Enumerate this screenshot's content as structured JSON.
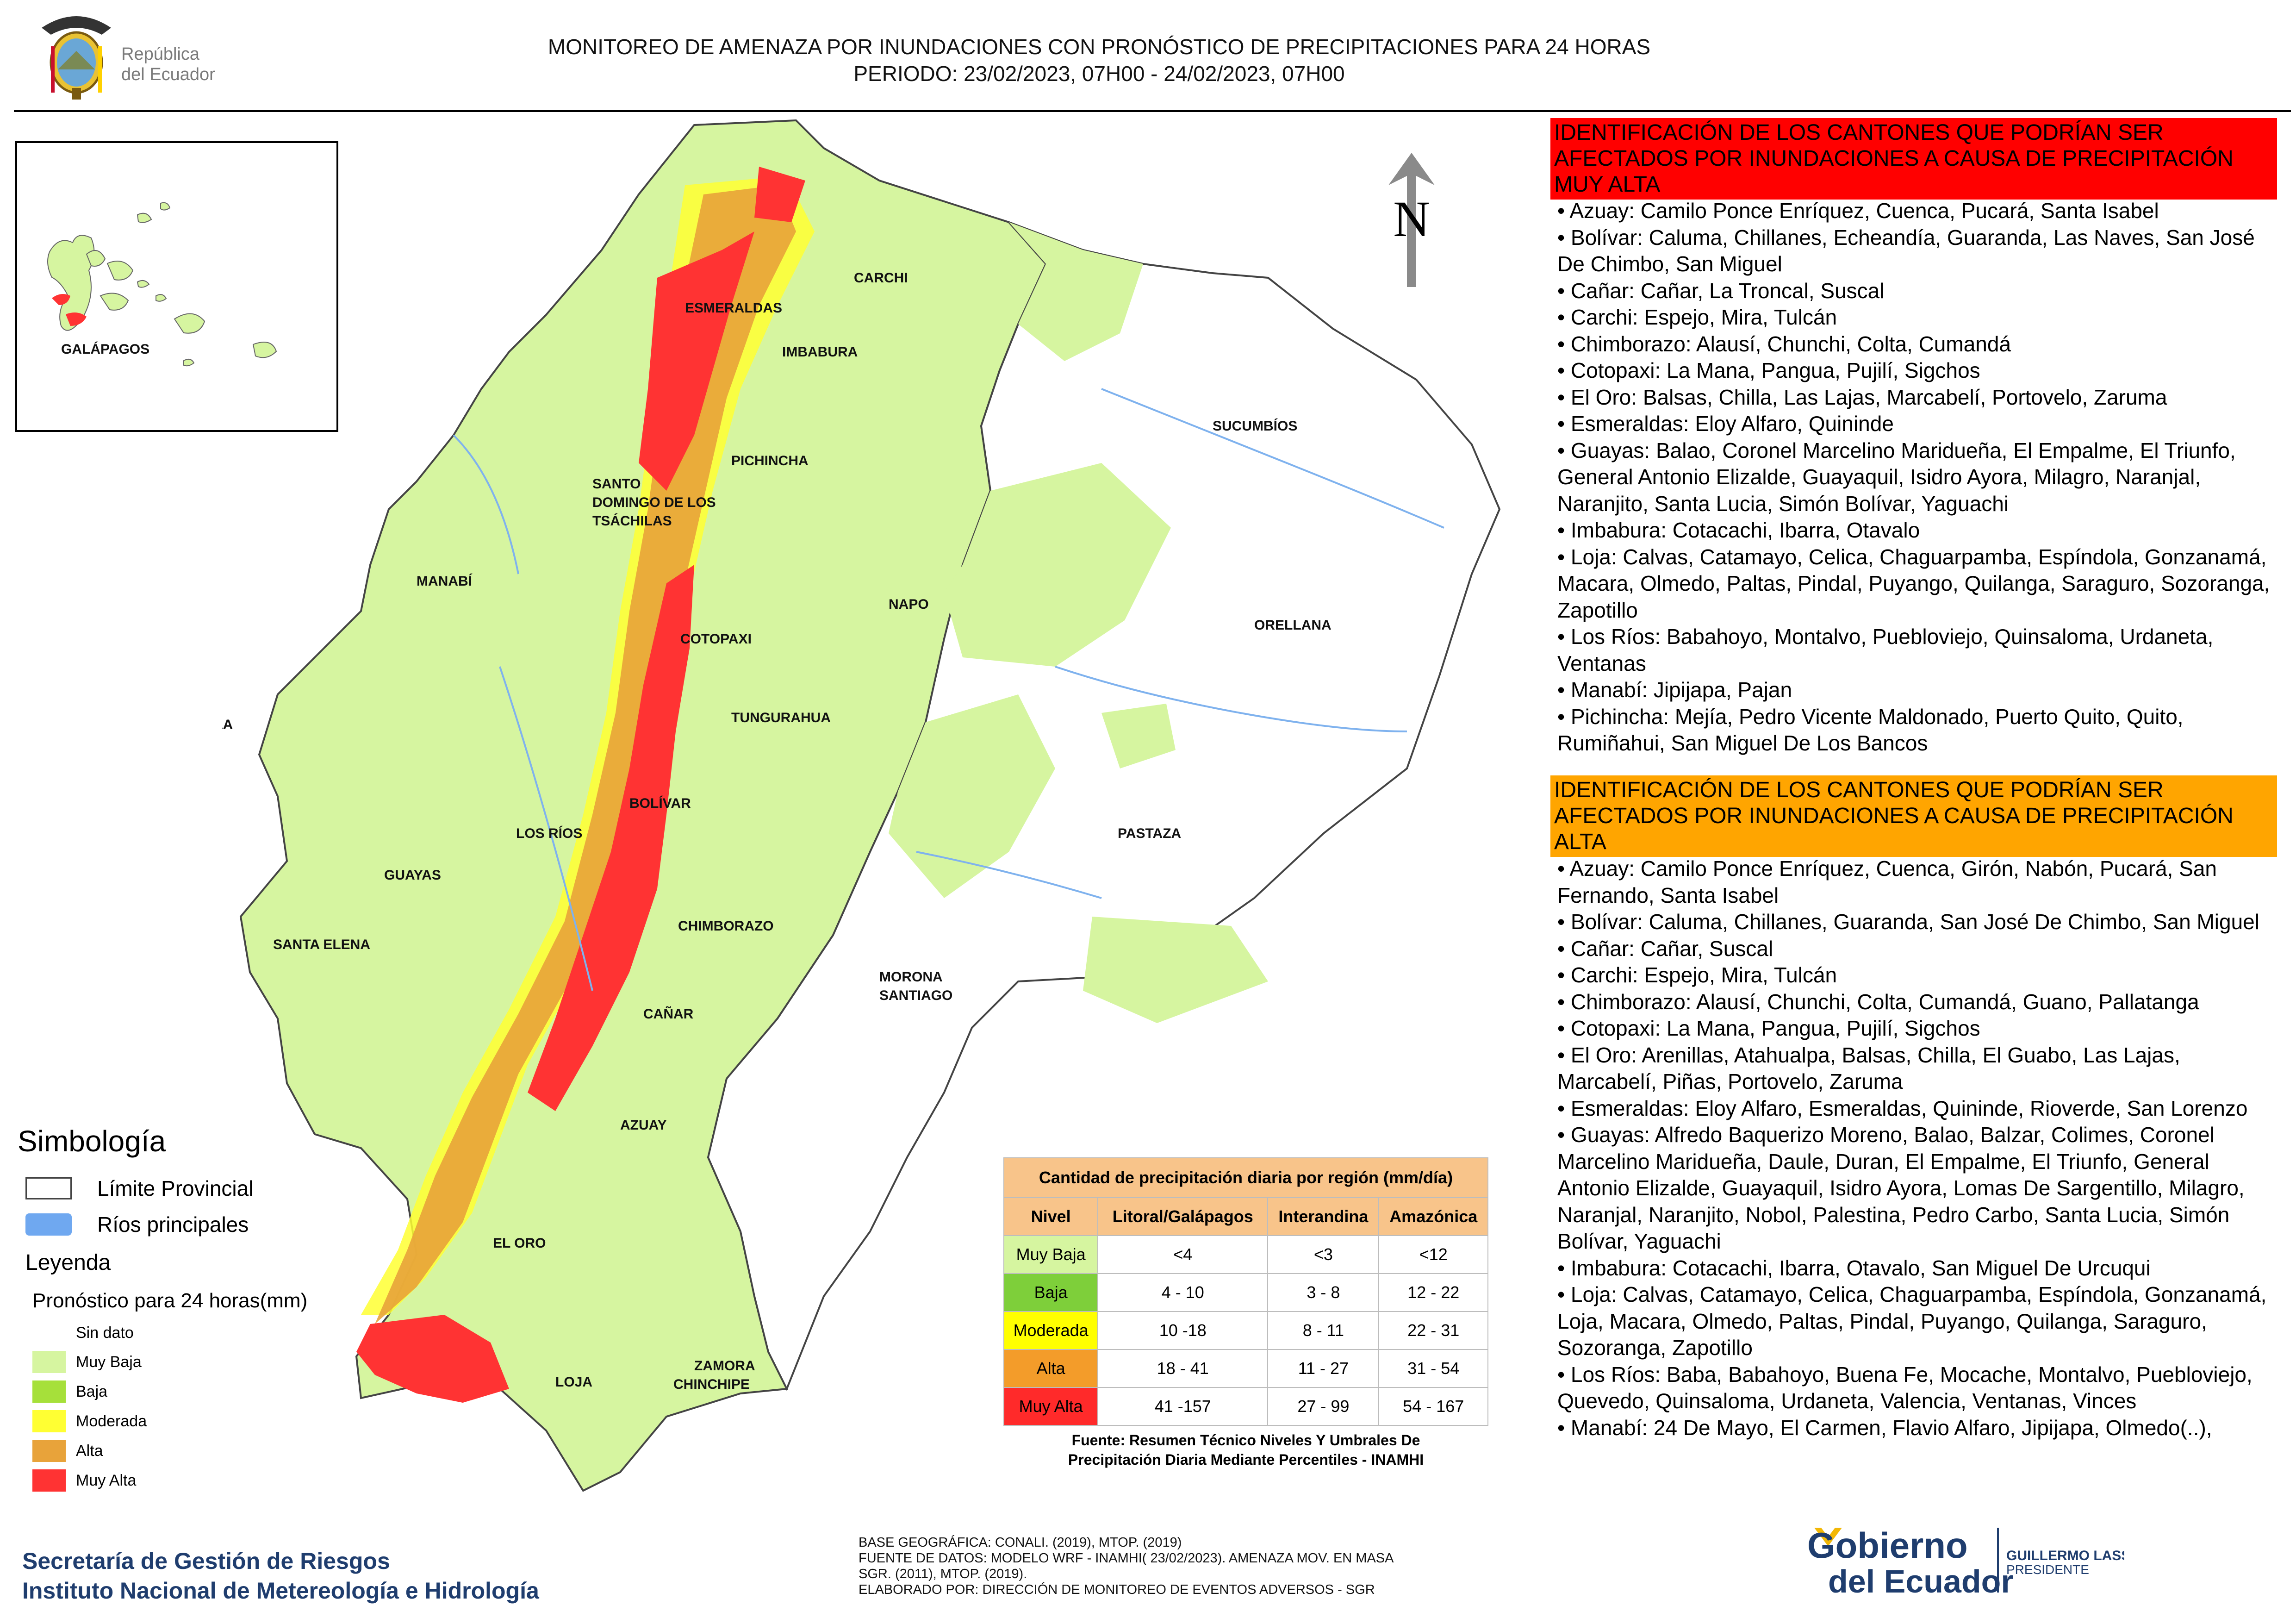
{
  "header": {
    "logo_text_line1": "República",
    "logo_text_line2": "del Ecuador",
    "title_line1": "MONITOREO DE AMENAZA POR INUNDACIONES  CON PRONÓSTICO DE  PRECIPITACIONES PARA 24 HORAS",
    "title_line2": "PERIODO: 23/02/2023, 07H00 - 24/02/2023, 07H00"
  },
  "map": {
    "north_label": "N",
    "provinces": {
      "galapagos": "GALÁPAGOS",
      "esmeraldas": "ESMERALDAS",
      "carchi": "CARCHI",
      "imbabura": "IMBABURA",
      "sucumbios": "SUCUMBÍOS",
      "pichincha": "PICHINCHA",
      "santo_domingo_1": "SANTO",
      "santo_domingo_2": "DOMINGO DE LOS",
      "santo_domingo_3": "TSÁCHILAS",
      "manabi": "MANABÍ",
      "napo": "NAPO",
      "orellana": "ORELLANA",
      "cotopaxi": "COTOPAXI",
      "isla": "ISLA",
      "tungurahua": "TUNGURAHUA",
      "bolivar": "BOLÍVAR",
      "los_rios": "LOS RÍOS",
      "pastaza": "PASTAZA",
      "guayas": "GUAYAS",
      "chimborazo": "CHIMBORAZO",
      "santa_elena": "SANTA ELENA",
      "morona_1": "MORONA",
      "morona_2": "SANTIAGO",
      "canar": "CAÑAR",
      "azuay": "AZUAY",
      "el_oro": "EL ORO",
      "zamora_1": "ZAMORA",
      "zamora_2": "CHINCHIPE",
      "loja": "LOJA"
    }
  },
  "symbology": {
    "title": "Simbología",
    "limite": "Límite Provincial",
    "rios": "Ríos principales",
    "leyenda_title": "Leyenda",
    "leyenda_sub": "Pronóstico para 24 horas(mm)",
    "items": [
      {
        "label": "Sin dato",
        "color": "#ffffff"
      },
      {
        "label": "Muy Baja",
        "color": "#d6f5a0"
      },
      {
        "label": "Baja",
        "color": "#a6e03a"
      },
      {
        "label": "Moderada",
        "color": "#ffff33"
      },
      {
        "label": "Alta",
        "color": "#e8a33a"
      },
      {
        "label": "Muy Alta",
        "color": "#ff3333"
      }
    ],
    "limite_color": "#ffffff",
    "rios_color": "#6fa8f0"
  },
  "precip_table": {
    "caption": "Cantidad de precipitación diaria por región (mm/día)",
    "headers": [
      "Nivel",
      "Litoral/Galápagos",
      "Interandina",
      "Amazónica"
    ],
    "rows": [
      {
        "nivel": "Muy Baja",
        "color": "#d6f5a0",
        "litoral": "<4",
        "interandina": "<3",
        "amazonica": "<12"
      },
      {
        "nivel": "Baja",
        "color": "#7ecf3a",
        "litoral": "4 - 10",
        "interandina": "3 - 8",
        "amazonica": "12 - 22"
      },
      {
        "nivel": "Moderada",
        "color": "#ffff00",
        "litoral": "10 -18",
        "interandina": "8 - 11",
        "amazonica": "22 - 31"
      },
      {
        "nivel": "Alta",
        "color": "#f39c2a",
        "litoral": "18 - 41",
        "interandina": "11 - 27",
        "amazonica": "31 - 54"
      },
      {
        "nivel": "Muy Alta",
        "color": "#ff2a2a",
        "litoral": "41 -157",
        "interandina": "27 - 99",
        "amazonica": "54 - 167"
      }
    ],
    "fuente_line1": "Fuente: Resumen Técnico Niveles Y Umbrales De",
    "fuente_line2": "Precipitación Diaria Mediante Percentiles - INAMHI"
  },
  "footer": {
    "sgr_line1": "Secretaría de Gestión de Riesgos",
    "sgr_line2": "Instituto Nacional de Metereología e Hidrología",
    "base_line1": "BASE GEOGRÁFICA: CONALI. (2019), MTOP. (2019)",
    "base_line2": "FUENTE DE DATOS: MODELO WRF - INAMHI( 23/02/2023).  AMENAZA MOV. EN MASA",
    "base_line3": "SGR. (2011), MTOP. (2019).",
    "base_line4": "ELABORADO POR: DIRECCIÓN DE MONITOREO DE EVENTOS ADVERSOS - SGR",
    "gob_line1": "Gobierno",
    "gob_line2": "del Ecuador",
    "gob_name": "GUILLERMO LASSO",
    "gob_role": "PRESIDENTE"
  },
  "panels": {
    "muy_alta_title": "IDENTIFICACIÓN DE LOS CANTONES QUE PODRÍAN SER AFECTADOS POR INUNDACIONES  A CAUSA DE PRECIPITACIÓN MUY ALTA",
    "muy_alta_items": [
      "Azuay: Camilo Ponce Enríquez, Cuenca, Pucará, Santa Isabel",
      "Bolívar: Caluma, Chillanes, Echeandía, Guaranda, Las Naves, San José De Chimbo, San Miguel",
      "Cañar: Cañar, La Troncal, Suscal",
      "Carchi: Espejo, Mira, Tulcán",
      "Chimborazo: Alausí, Chunchi, Colta, Cumandá",
      "Cotopaxi: La Mana, Pangua, Pujilí, Sigchos",
      "El Oro: Balsas, Chilla, Las Lajas, Marcabelí, Portovelo, Zaruma",
      "Esmeraldas: Eloy Alfaro, Quininde",
      "Guayas: Balao, Coronel Marcelino Maridueña, El Empalme, El Triunfo, General Antonio Elizalde, Guayaquil, Isidro Ayora, Milagro, Naranjal, Naranjito, Santa Lucia, Simón Bolívar, Yaguachi",
      "Imbabura: Cotacachi, Ibarra, Otavalo",
      "Loja: Calvas, Catamayo, Celica, Chaguarpamba, Espíndola, Gonzanamá, Macara, Olmedo, Paltas, Pindal, Puyango, Quilanga, Saraguro, Sozoranga, Zapotillo",
      "Los Ríos: Babahoyo, Montalvo, Puebloviejo, Quinsaloma, Urdaneta, Ventanas",
      "Manabí: Jipijapa, Pajan",
      "Pichincha: Mejía, Pedro Vicente Maldonado, Puerto Quito, Quito, Rumiñahui, San Miguel De Los Bancos"
    ],
    "alta_title": "IDENTIFICACIÓN DE LOS CANTONES QUE  PODRÍAN SER AFECTADOS POR INUNDACIONES  A CAUSA DE PRECIPITACIÓN ALTA",
    "alta_items": [
      "Azuay: Camilo Ponce Enríquez, Cuenca, Girón, Nabón, Pucará, San Fernando, Santa Isabel",
      "Bolívar: Caluma, Chillanes, Guaranda, San José De Chimbo, San Miguel",
      "Cañar: Cañar, Suscal",
      "Carchi: Espejo, Mira, Tulcán",
      "Chimborazo: Alausí, Chunchi, Colta, Cumandá, Guano, Pallatanga",
      "Cotopaxi: La Mana, Pangua, Pujilí, Sigchos",
      "El Oro: Arenillas, Atahualpa, Balsas, Chilla, El Guabo, Las Lajas, Marcabelí, Piñas, Portovelo, Zaruma",
      "Esmeraldas: Eloy Alfaro, Esmeraldas, Quininde, Rioverde, San Lorenzo",
      "Guayas: Alfredo Baquerizo Moreno, Balao, Balzar, Colimes, Coronel Marcelino Maridueña, Daule, Duran, El Empalme, El Triunfo, General Antonio Elizalde, Guayaquil, Isidro Ayora, Lomas De Sargentillo, Milagro, Naranjal, Naranjito, Nobol, Palestina, Pedro Carbo, Santa Lucia, Simón Bolívar, Yaguachi",
      "Imbabura: Cotacachi, Ibarra, Otavalo, San Miguel De Urcuqui",
      "Loja: Calvas, Catamayo, Celica, Chaguarpamba, Espíndola, Gonzanamá, Loja, Macara, Olmedo, Paltas, Pindal, Puyango, Quilanga, Saraguro, Sozoranga, Zapotillo",
      "Los Ríos: Baba, Babahoyo, Buena Fe, Mocache, Montalvo, Puebloviejo, Quevedo, Quinsaloma, Urdaneta, Valencia, Ventanas, Vinces",
      "Manabí: 24 De Mayo, El Carmen, Flavio Alfaro, Jipijapa, Olmedo(..),"
    ]
  }
}
